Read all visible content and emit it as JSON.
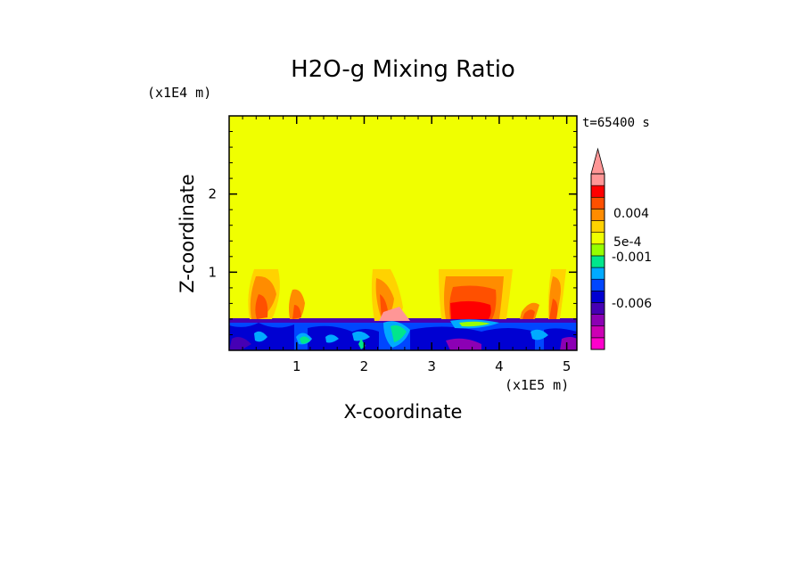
{
  "chart_data": {
    "type": "heatmap",
    "title": "H2O-g Mixing Ratio",
    "xlabel": "X-coordinate",
    "ylabel": "Z-coordinate",
    "x_unit": "(x1E5 m)",
    "y_unit": "(x1E4 m)",
    "time_label": "t=65400 s",
    "xlim": [
      0,
      5.15
    ],
    "ylim": [
      0,
      3.0
    ],
    "x_ticks": [
      "1",
      "2",
      "3",
      "4",
      "5"
    ],
    "y_ticks": [
      "1",
      "2"
    ],
    "background_value_color": "#f0ff00",
    "colorbar": {
      "colors": [
        "#ff00cc",
        "#cc00b4",
        "#8c00b4",
        "#4600b4",
        "#0000d2",
        "#0046ff",
        "#00aaff",
        "#00e68c",
        "#96ff00",
        "#f0ff00",
        "#ffd200",
        "#ff8c00",
        "#ff5000",
        "#ff0000",
        "#ff9696"
      ],
      "labels": [
        "0.004",
        "5e-4",
        "-0.001",
        "-0.006"
      ],
      "extend": "max"
    }
  }
}
